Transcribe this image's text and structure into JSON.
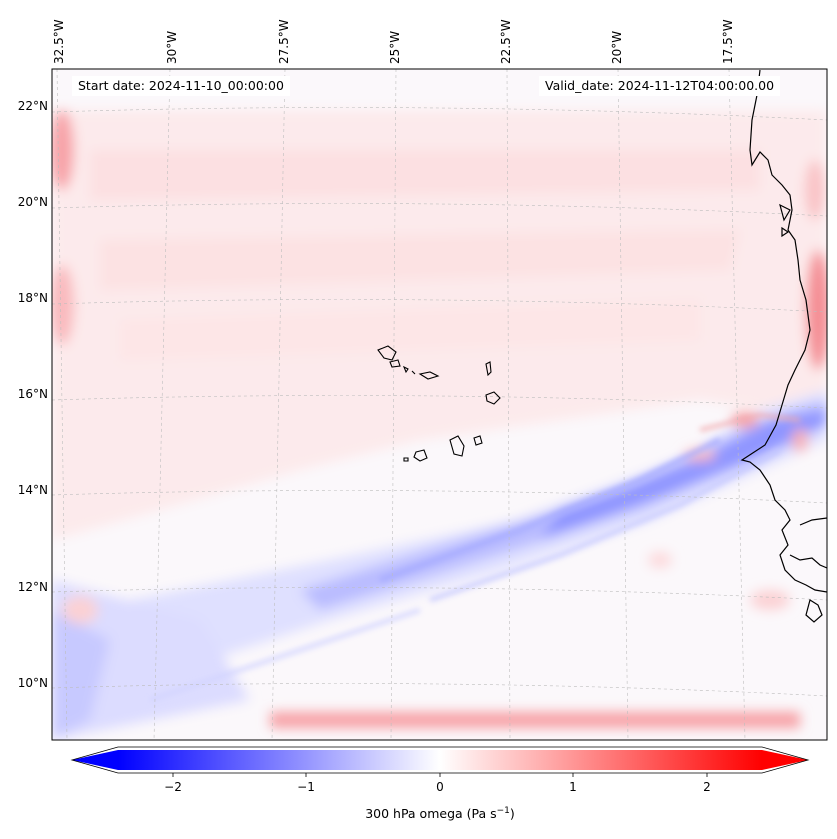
{
  "map": {
    "lon_labels": [
      "32.5°W",
      "30°W",
      "27.5°W",
      "25°W",
      "22.5°W",
      "20°W",
      "17.5°W"
    ],
    "lat_labels": [
      "22°N",
      "20°N",
      "18°N",
      "16°N",
      "14°N",
      "12°N",
      "10°N"
    ],
    "start_date": "Start date: 2024-11-10_00:00:00",
    "valid_date": "Valid_date: 2024-11-12T04:00:00.00"
  },
  "colorbar": {
    "ticks": [
      "−2",
      "−1",
      "0",
      "1",
      "2"
    ],
    "label": "300 hPa omega (Pa s",
    "label_exp": "−1",
    "label_close": ")",
    "vmin": -2.7,
    "vmax": 2.7,
    "colormap": "bwr",
    "color_min": "#0000ff",
    "color_mid": "#ffffff",
    "color_max": "#ff0000"
  }
}
